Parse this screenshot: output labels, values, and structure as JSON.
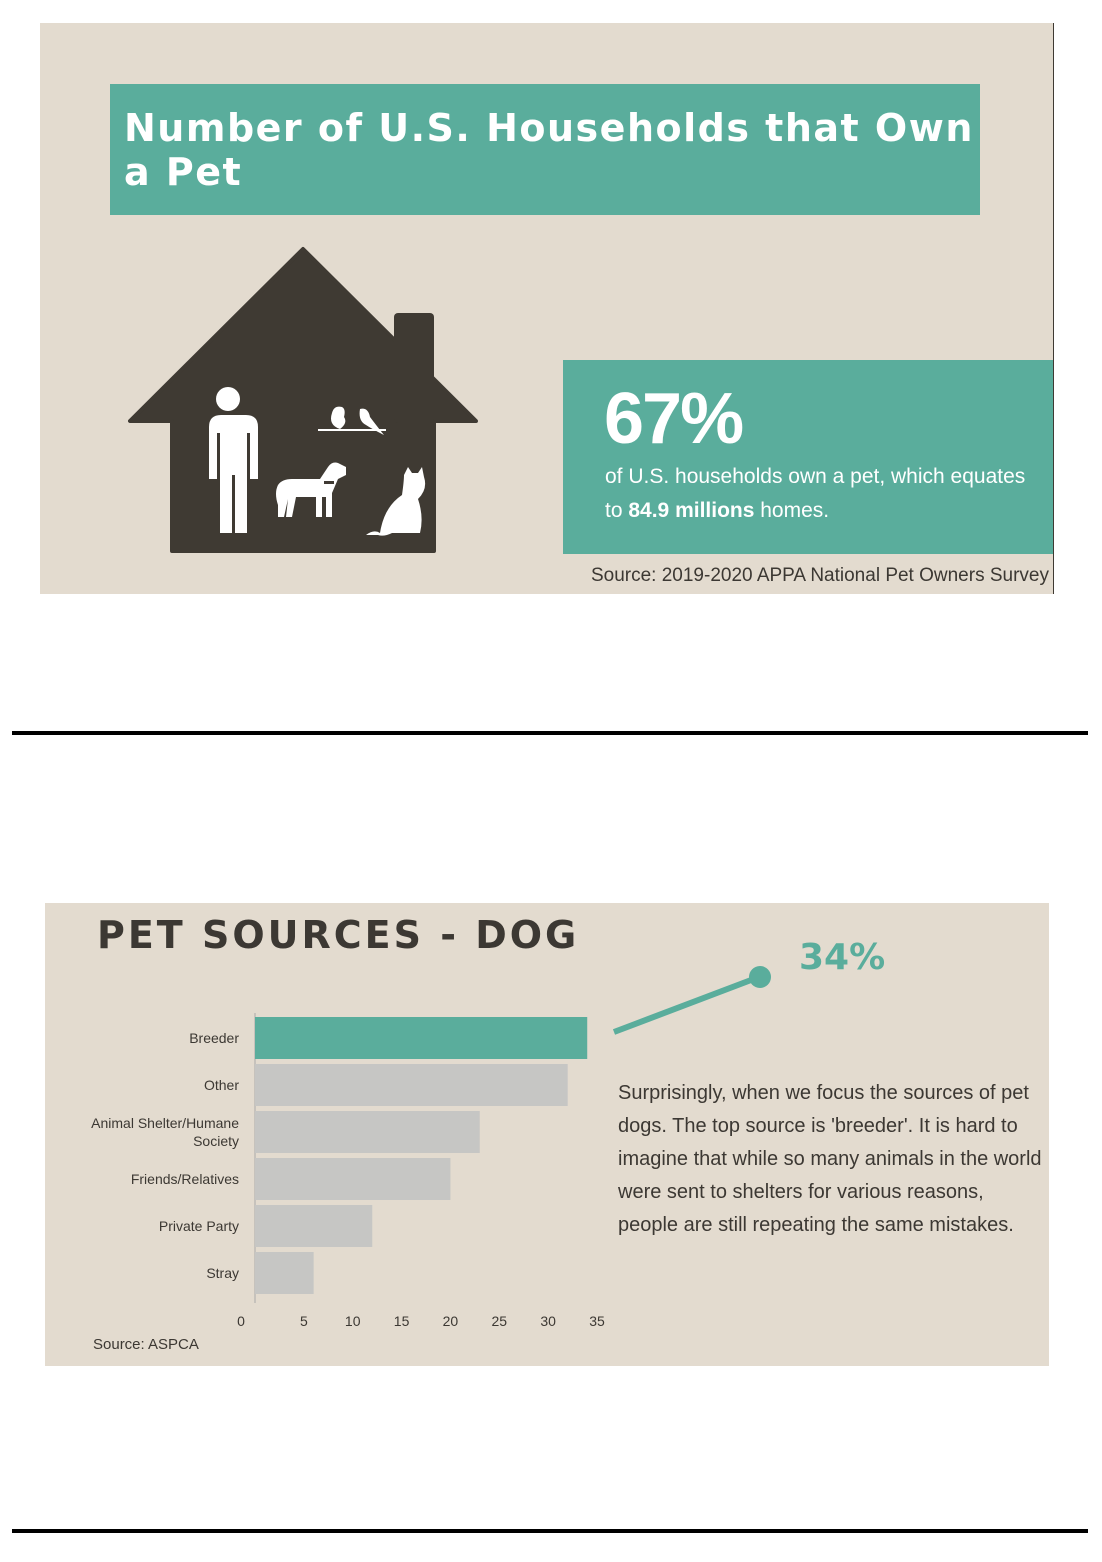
{
  "infographic1": {
    "title": "Number of U.S. Households that Own a Pet",
    "stat_percent": "67%",
    "stat_text_1": "of U.S. households own a pet, which equates to ",
    "stat_text_bold": "84.9 millions",
    "stat_text_2": " homes.",
    "source": "Source: 2019-2020 APPA National Pet Owners Survey",
    "house_icon": "house-with-person-dog-cat-birds-icon"
  },
  "colors": {
    "teal": "#5aad9c",
    "panel_bg": "#e3dbcf",
    "dark": "#3f3a33",
    "bar_gray": "#c6c6c4"
  },
  "infographic2": {
    "title": "PET SOURCES - DOG",
    "callout_percent": "34%",
    "description": "Surprisingly, when we focus the sources of pet dogs. The top source is 'breeder'. It is hard to imagine that while so many animals in the world were sent to shelters for various reasons, people are still repeating the same mistakes.",
    "source": "Source: ASPCA"
  },
  "chart_data": {
    "type": "bar",
    "orientation": "horizontal",
    "title": "PET SOURCES - DOG",
    "categories": [
      "Breeder",
      "Other",
      "Animal Shelter/Humane Society",
      "Friends/Relatives",
      "Private Party",
      "Stray"
    ],
    "category_lines": [
      [
        "Breeder"
      ],
      [
        "Other"
      ],
      [
        "Animal Shelter/Humane",
        "Society"
      ],
      [
        "Friends/Relatives"
      ],
      [
        "Private Party"
      ],
      [
        "Stray"
      ]
    ],
    "values": [
      34,
      32,
      23,
      20,
      12,
      6
    ],
    "highlight_index": 0,
    "xlim": [
      0,
      35
    ],
    "xticks": [
      0,
      5,
      10,
      15,
      20,
      25,
      30,
      35
    ],
    "xlabel": "",
    "ylabel": "",
    "grid": false
  }
}
